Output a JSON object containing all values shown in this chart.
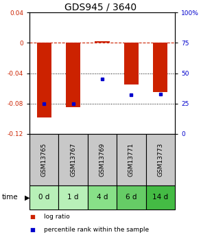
{
  "title": "GDS945 / 3640",
  "samples": [
    "GSM13765",
    "GSM13767",
    "GSM13769",
    "GSM13771",
    "GSM13773"
  ],
  "time_labels": [
    "0 d",
    "1 d",
    "4 d",
    "6 d",
    "14 d"
  ],
  "log_ratios": [
    -0.098,
    -0.085,
    0.002,
    -0.055,
    -0.065
  ],
  "percentile_ranks": [
    25,
    25,
    45,
    32,
    33
  ],
  "ylim_left": [
    -0.12,
    0.04
  ],
  "ylim_right": [
    0,
    100
  ],
  "left_yticks": [
    -0.12,
    -0.08,
    -0.04,
    0,
    0.04
  ],
  "right_yticks": [
    0,
    25,
    50,
    75,
    100
  ],
  "bar_color": "#cc2200",
  "dot_color": "#0000cc",
  "zero_line_color": "#cc2200",
  "grid_color": "#000000",
  "header_bg": "#c8c8c8",
  "time_bg_colors": [
    "#b8f0b8",
    "#b8f0b8",
    "#88e088",
    "#66cc66",
    "#44bb44"
  ],
  "title_fontsize": 10,
  "label_fontsize": 6.5,
  "tick_fontsize": 6.5,
  "legend_fontsize": 6.5
}
